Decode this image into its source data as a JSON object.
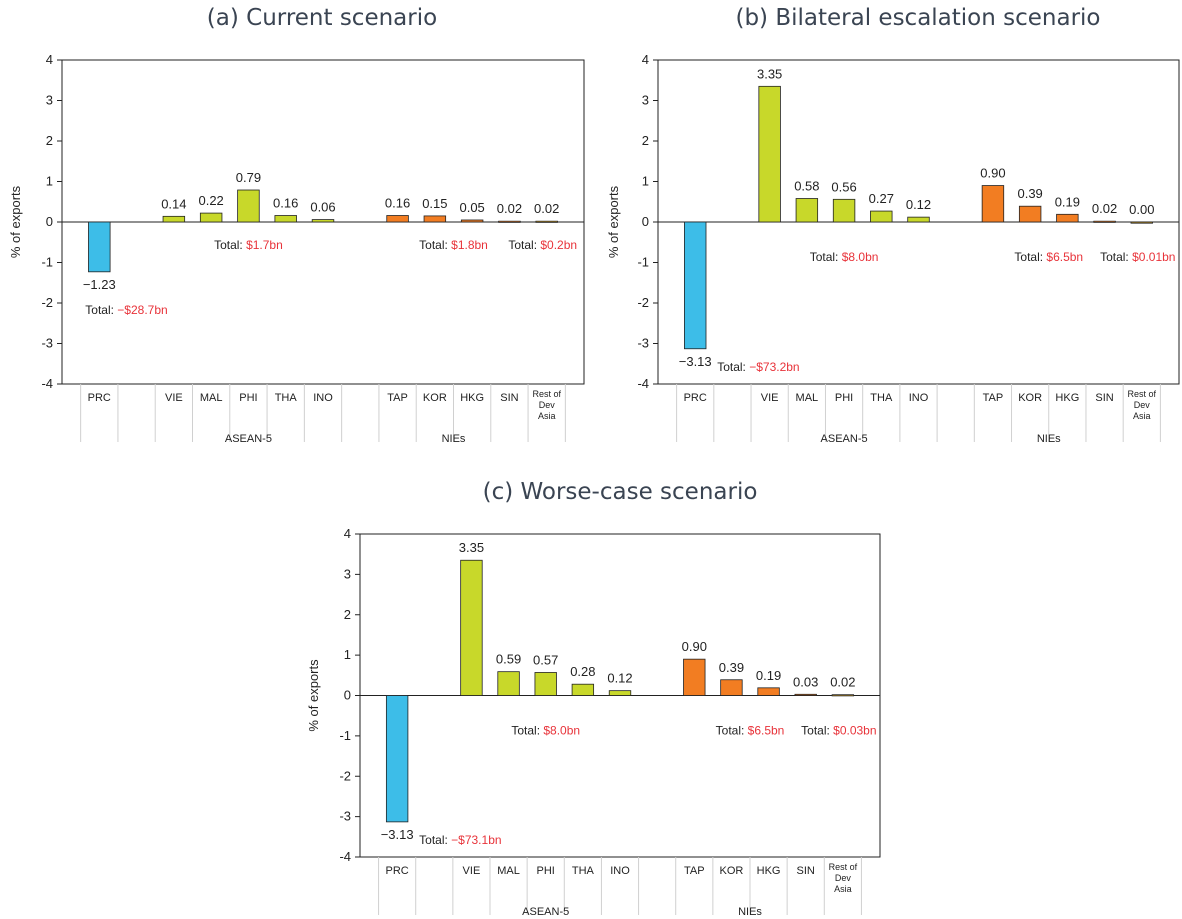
{
  "chart_data": [
    {
      "type": "bar",
      "title": "(a) Current scenario",
      "ylabel": "% of exports",
      "ylim": [
        -4,
        4
      ],
      "yticks": [
        "4",
        "3",
        "2",
        "1",
        "0",
        "-1",
        "-2",
        "-3",
        "-4"
      ],
      "grid": false,
      "categories": [
        "PRC",
        "VIE",
        "MAL",
        "PHI",
        "THA",
        "INO",
        "TAP",
        "KOR",
        "HKG",
        "SIN",
        "Rest of Dev Asia"
      ],
      "values": [
        -1.23,
        0.14,
        0.22,
        0.79,
        0.16,
        0.06,
        0.16,
        0.15,
        0.05,
        0.02,
        0.02
      ],
      "value_labels": [
        "−1.23",
        "0.14",
        "0.22",
        "0.79",
        "0.16",
        "0.06",
        "0.16",
        "0.15",
        "0.05",
        "0.02",
        "0.02"
      ],
      "groups": [
        {
          "name": "",
          "categories": [
            "PRC"
          ],
          "total_prefix": "Total: ",
          "total_value": "−$28.7bn"
        },
        {
          "name": "ASEAN-5",
          "categories": [
            "VIE",
            "MAL",
            "PHI",
            "THA",
            "INO"
          ],
          "total_prefix": "Total: ",
          "total_value": "$1.7bn"
        },
        {
          "name": "NIEs",
          "categories": [
            "TAP",
            "KOR",
            "HKG",
            "SIN"
          ],
          "total_prefix": "Total: ",
          "total_value": "$1.8bn"
        },
        {
          "name": "",
          "categories": [
            "Rest of Dev Asia"
          ],
          "total_prefix": "Total: ",
          "total_value": "$0.2bn"
        }
      ]
    },
    {
      "type": "bar",
      "title": "(b) Bilateral escalation scenario",
      "ylabel": "% of exports",
      "ylim": [
        -4,
        4
      ],
      "yticks": [
        "4",
        "3",
        "2",
        "1",
        "0",
        "-1",
        "-2",
        "-3",
        "-4"
      ],
      "grid": false,
      "categories": [
        "PRC",
        "VIE",
        "MAL",
        "PHI",
        "THA",
        "INO",
        "TAP",
        "KOR",
        "HKG",
        "SIN",
        "Rest of Dev Asia"
      ],
      "values": [
        -3.13,
        3.35,
        0.58,
        0.56,
        0.27,
        0.12,
        0.9,
        0.39,
        0.19,
        0.02,
        0.0
      ],
      "value_labels": [
        "−3.13",
        "3.35",
        "0.58",
        "0.56",
        "0.27",
        "0.12",
        "0.90",
        "0.39",
        "0.19",
        "0.02",
        "0.00"
      ],
      "groups": [
        {
          "name": "",
          "categories": [
            "PRC"
          ],
          "total_prefix": "Total: ",
          "total_value": "−$73.2bn"
        },
        {
          "name": "ASEAN-5",
          "categories": [
            "VIE",
            "MAL",
            "PHI",
            "THA",
            "INO"
          ],
          "total_prefix": "Total: ",
          "total_value": "$8.0bn"
        },
        {
          "name": "NIEs",
          "categories": [
            "TAP",
            "KOR",
            "HKG",
            "SIN"
          ],
          "total_prefix": "Total: ",
          "total_value": "$6.5bn"
        },
        {
          "name": "",
          "categories": [
            "Rest of Dev Asia"
          ],
          "total_prefix": "Total: ",
          "total_value": "$0.01bn"
        }
      ]
    },
    {
      "type": "bar",
      "title": "(c) Worse-case scenario",
      "ylabel": "% of exports",
      "ylim": [
        -4,
        4
      ],
      "yticks": [
        "4",
        "3",
        "2",
        "1",
        "0",
        "-1",
        "-2",
        "-3",
        "-4"
      ],
      "grid": false,
      "categories": [
        "PRC",
        "VIE",
        "MAL",
        "PHI",
        "THA",
        "INO",
        "TAP",
        "KOR",
        "HKG",
        "SIN",
        "Rest of Dev Asia"
      ],
      "values": [
        -3.13,
        3.35,
        0.59,
        0.57,
        0.28,
        0.12,
        0.9,
        0.39,
        0.19,
        0.03,
        0.02
      ],
      "value_labels": [
        "−3.13",
        "3.35",
        "0.59",
        "0.57",
        "0.28",
        "0.12",
        "0.90",
        "0.39",
        "0.19",
        "0.03",
        "0.02"
      ],
      "groups": [
        {
          "name": "",
          "categories": [
            "PRC"
          ],
          "total_prefix": "Total: ",
          "total_value": "−$73.1bn"
        },
        {
          "name": "ASEAN-5",
          "categories": [
            "VIE",
            "MAL",
            "PHI",
            "THA",
            "INO"
          ],
          "total_prefix": "Total: ",
          "total_value": "$8.0bn"
        },
        {
          "name": "NIEs",
          "categories": [
            "TAP",
            "KOR",
            "HKG",
            "SIN"
          ],
          "total_prefix": "Total: ",
          "total_value": "$6.5bn"
        },
        {
          "name": "",
          "categories": [
            "Rest of Dev Asia"
          ],
          "total_prefix": "Total: ",
          "total_value": "$0.03bn"
        }
      ]
    }
  ],
  "colors": {
    "PRC": "#3dbde8",
    "ASEAN-5": "#c8d82a",
    "NIEs": "#f27d22",
    "Rest of Dev Asia": "#d9a324",
    "total_value": "#e8333a",
    "axis": "#222222",
    "separator": "#d0d0d0"
  }
}
